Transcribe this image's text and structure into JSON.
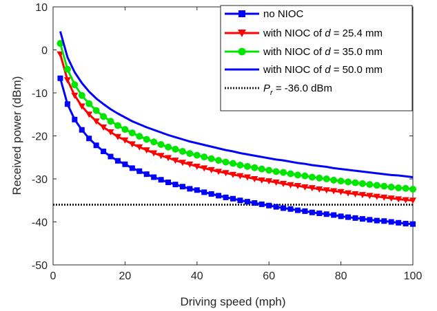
{
  "chart_data": {
    "type": "line",
    "xlabel": "Driving speed (mph)",
    "ylabel": "Received power (dBm)",
    "xlim": [
      0,
      100
    ],
    "ylim": [
      -50,
      10
    ],
    "xticks": [
      0,
      20,
      40,
      60,
      80,
      100
    ],
    "yticks": [
      10,
      0,
      -10,
      -20,
      -30,
      -40,
      -50
    ],
    "x": [
      2,
      4,
      6,
      8,
      10,
      12,
      14,
      16,
      18,
      20,
      22,
      24,
      26,
      28,
      30,
      32,
      34,
      36,
      38,
      40,
      42,
      44,
      46,
      48,
      50,
      52,
      54,
      56,
      58,
      60,
      62,
      64,
      66,
      68,
      70,
      72,
      74,
      76,
      78,
      80,
      82,
      84,
      86,
      88,
      90,
      92,
      94,
      96,
      98,
      100
    ],
    "grid": false,
    "legend_position": "top-right",
    "series": [
      {
        "name": "no NIOC",
        "color": "#0000FF",
        "marker": "square",
        "values": [
          -6.6,
          -12.6,
          -16.2,
          -18.6,
          -20.6,
          -22.2,
          -23.6,
          -24.8,
          -25.8,
          -26.6,
          -27.5,
          -28.2,
          -28.9,
          -29.6,
          -30.2,
          -30.8,
          -31.3,
          -31.8,
          -32.3,
          -32.6,
          -33.1,
          -33.5,
          -33.9,
          -34.3,
          -34.6,
          -35.0,
          -35.3,
          -35.6,
          -35.9,
          -36.2,
          -36.5,
          -36.8,
          -37.0,
          -37.3,
          -37.5,
          -37.8,
          -38.0,
          -38.2,
          -38.4,
          -38.7,
          -38.9,
          -39.1,
          -39.3,
          -39.5,
          -39.7,
          -39.8,
          -40.0,
          -40.2,
          -40.4,
          -40.5
        ]
      },
      {
        "name": "with NIOC of d = 25.4 mm",
        "color": "#FF0000",
        "marker": "triangle-down",
        "values": [
          -1.0,
          -7.0,
          -10.6,
          -13.1,
          -15.0,
          -16.6,
          -18.0,
          -19.1,
          -20.2,
          -21.0,
          -21.9,
          -22.6,
          -23.3,
          -24.0,
          -24.6,
          -25.1,
          -25.7,
          -26.2,
          -26.6,
          -27.1,
          -27.5,
          -27.9,
          -28.3,
          -28.6,
          -29.0,
          -29.3,
          -29.6,
          -30.0,
          -30.3,
          -30.5,
          -30.8,
          -31.1,
          -31.4,
          -31.6,
          -31.9,
          -32.1,
          -32.4,
          -32.6,
          -32.8,
          -33.0,
          -33.3,
          -33.5,
          -33.7,
          -33.9,
          -34.1,
          -34.3,
          -34.5,
          -34.7,
          -34.9,
          -35.0
        ]
      },
      {
        "name": "with NIOC of d = 35.0 mm",
        "color": "#00E600",
        "marker": "circle",
        "values": [
          1.5,
          -4.5,
          -8.1,
          -10.6,
          -12.5,
          -14.1,
          -15.5,
          -16.6,
          -17.6,
          -18.5,
          -19.3,
          -20.1,
          -20.8,
          -21.4,
          -22.0,
          -22.6,
          -23.1,
          -23.6,
          -24.1,
          -24.5,
          -24.9,
          -25.3,
          -25.7,
          -26.1,
          -26.4,
          -26.8,
          -27.1,
          -27.4,
          -27.7,
          -28.0,
          -28.3,
          -28.5,
          -28.8,
          -29.1,
          -29.3,
          -29.6,
          -29.8,
          -30.0,
          -30.3,
          -30.5,
          -30.7,
          -30.9,
          -31.1,
          -31.3,
          -31.5,
          -31.7,
          -31.9,
          -32.1,
          -32.2,
          -32.4
        ]
      },
      {
        "name": "with NIOC of d = 50.0 mm",
        "color": "#0000FF",
        "marker": "none",
        "values": [
          4.3,
          -1.7,
          -5.2,
          -7.7,
          -9.7,
          -11.3,
          -12.6,
          -13.8,
          -14.8,
          -15.7,
          -16.6,
          -17.3,
          -18.0,
          -18.6,
          -19.2,
          -19.8,
          -20.3,
          -20.8,
          -21.3,
          -21.7,
          -22.1,
          -22.5,
          -22.9,
          -23.3,
          -23.6,
          -24.0,
          -24.3,
          -24.6,
          -24.9,
          -25.2,
          -25.5,
          -25.7,
          -26.0,
          -26.3,
          -26.5,
          -26.8,
          -27.0,
          -27.2,
          -27.5,
          -27.7,
          -27.9,
          -28.1,
          -28.3,
          -28.5,
          -28.7,
          -28.9,
          -29.1,
          -29.2,
          -29.4,
          -29.6
        ]
      }
    ],
    "reference_line": {
      "label_symbol": "P",
      "label_subscript": "r",
      "label_value": " = -36.0 dBm",
      "value": -36.0,
      "color": "#222222",
      "style": "dotted"
    }
  },
  "legend": {
    "no_nioc": "no NIOC",
    "d254_prefix": "with NIOC of ",
    "d254_var": "d",
    "d254_suffix": " = 25.4 mm",
    "d350_prefix": "with NIOC of ",
    "d350_var": "d",
    "d350_suffix": " = 35.0 mm",
    "d500_prefix": "with NIOC of ",
    "d500_var": "d",
    "d500_suffix": " = 50.0 mm"
  }
}
